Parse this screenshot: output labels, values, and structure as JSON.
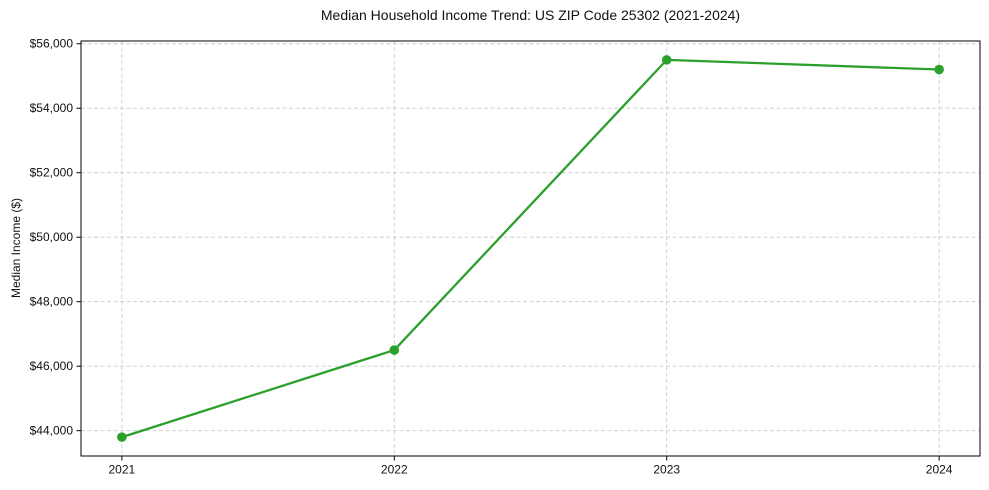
{
  "chart": {
    "title": "Median Household Income Trend: US ZIP Code 25302 (2021-2024)",
    "ylabel": "Median Income ($)"
  },
  "chart_data": {
    "type": "line",
    "title": "Median Household Income Trend: US ZIP Code 25302 (2021-2024)",
    "xlabel": "",
    "ylabel": "Median Income ($)",
    "x": [
      2021,
      2022,
      2023,
      2024
    ],
    "categories": [
      "2021",
      "2022",
      "2023",
      "2024"
    ],
    "series": [
      {
        "name": "Median Household Income",
        "values": [
          43800,
          46500,
          55500,
          55200
        ]
      }
    ],
    "yticks": [
      44000,
      46000,
      48000,
      50000,
      52000,
      54000,
      56000
    ],
    "ytick_labels": [
      "$44,000",
      "$46,000",
      "$48,000",
      "$50,000",
      "$52,000",
      "$54,000",
      "$56,000"
    ],
    "ylim": [
      43215,
      56085
    ],
    "xlim": [
      2020.85,
      2024.15
    ],
    "grid": true,
    "grid_style": "dashed",
    "legend": "none",
    "colors": {
      "line": "#2ca02c",
      "marker": "#2ca02c",
      "grid": "#cccccc",
      "axis": "#000000",
      "text": "#111111",
      "background": "#ffffff"
    }
  }
}
